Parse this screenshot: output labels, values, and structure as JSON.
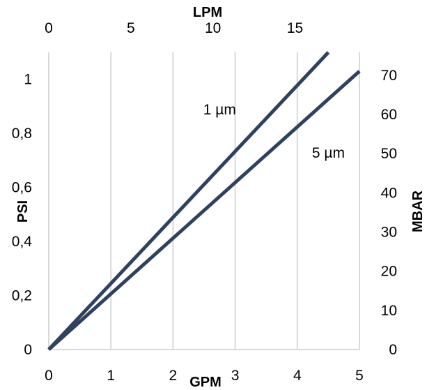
{
  "chart_data": {
    "type": "line",
    "x_primary": {
      "label": "GPM",
      "range": [
        0,
        5
      ],
      "ticks": [
        "0",
        "1",
        "2",
        "3",
        "4",
        "5"
      ]
    },
    "x_secondary": {
      "label": "LPM",
      "ticks": [
        "0",
        "5",
        "10",
        "15"
      ],
      "tick_values": [
        0,
        5,
        10,
        15
      ]
    },
    "y_primary": {
      "label": "PSI",
      "range": [
        0,
        1.1
      ],
      "ticks": [
        "0",
        "0,2",
        "0,4",
        "0,6",
        "0,8",
        "1"
      ],
      "tick_values": [
        0,
        0.2,
        0.4,
        0.6,
        0.8,
        1
      ]
    },
    "y_secondary": {
      "label": "MBAR",
      "ticks": [
        "0",
        "10",
        "20",
        "30",
        "40",
        "50",
        "60",
        "70"
      ],
      "tick_values": [
        0,
        10,
        20,
        30,
        40,
        50,
        60,
        70
      ]
    },
    "grid": "vertical",
    "series": [
      {
        "name": "1 µm",
        "x": [
          0,
          4.5
        ],
        "y": [
          0,
          1.1
        ],
        "color": "#2e4260",
        "label_at": [
          2.75,
          0.87
        ]
      },
      {
        "name": "5 µm",
        "x": [
          0,
          5
        ],
        "y": [
          0,
          1.03
        ],
        "color": "#2e4260",
        "label_at": [
          4.5,
          0.71
        ]
      }
    ]
  }
}
